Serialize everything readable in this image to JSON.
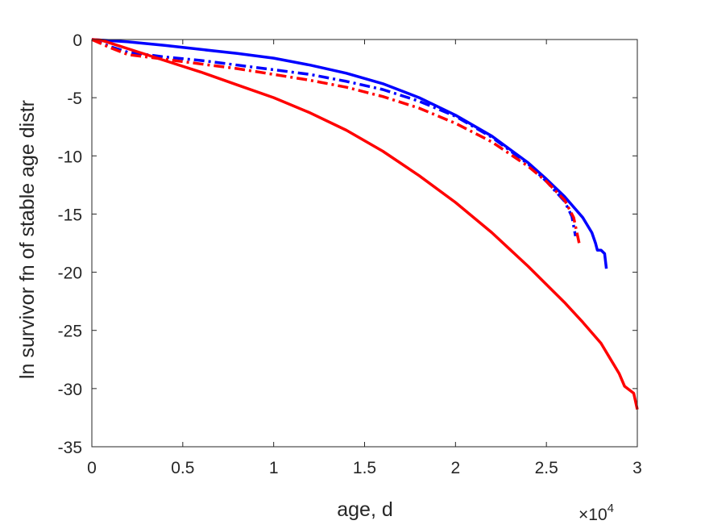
{
  "chart_data": {
    "type": "line",
    "title": "",
    "xlabel": "age, d",
    "ylabel": "ln survivor fn of stable age distr",
    "x_exponent_label": "×10",
    "x_exponent_power": "4",
    "xlim": [
      0,
      30000
    ],
    "ylim": [
      -35,
      0
    ],
    "grid": false,
    "legend": "none",
    "x_ticks": [
      0,
      5000,
      10000,
      15000,
      20000,
      25000,
      30000
    ],
    "x_tick_labels": [
      "0",
      "0.5",
      "1",
      "1.5",
      "2",
      "2.5",
      "3"
    ],
    "y_ticks": [
      0,
      -5,
      -10,
      -15,
      -20,
      -25,
      -30,
      -35
    ],
    "y_tick_labels": [
      "0",
      "-5",
      "-10",
      "-15",
      "-20",
      "-25",
      "-30",
      "-35"
    ],
    "series": [
      {
        "color": "#0000ff",
        "style": "solid",
        "x": [
          0,
          1000,
          2000,
          4000,
          6000,
          8000,
          10000,
          12000,
          14000,
          16000,
          18000,
          20000,
          22000,
          24000,
          25000,
          26000,
          27000,
          27500,
          27700,
          27800,
          28000,
          28200,
          28300
        ],
        "y": [
          0,
          -0.1,
          -0.2,
          -0.5,
          -0.85,
          -1.2,
          -1.6,
          -2.2,
          -2.9,
          -3.8,
          -5.0,
          -6.5,
          -8.3,
          -10.6,
          -12.0,
          -13.5,
          -15.3,
          -16.6,
          -17.5,
          -18.1,
          -18.1,
          -18.4,
          -19.7
        ]
      },
      {
        "color": "#0000ff",
        "style": "dashdot",
        "x": [
          0,
          1000,
          2000,
          4000,
          6000,
          8000,
          10000,
          12000,
          14000,
          16000,
          18000,
          20000,
          22000,
          24000,
          25000,
          26000,
          26400,
          26600
        ],
        "y": [
          0,
          -0.6,
          -1.1,
          -1.5,
          -1.8,
          -2.2,
          -2.6,
          -3.0,
          -3.6,
          -4.3,
          -5.3,
          -6.6,
          -8.4,
          -10.7,
          -12.2,
          -13.9,
          -15.2,
          -16.9
        ]
      },
      {
        "color": "#ff0000",
        "style": "solid",
        "x": [
          0,
          500,
          1000,
          2000,
          4000,
          6000,
          8000,
          10000,
          12000,
          14000,
          16000,
          18000,
          20000,
          22000,
          24000,
          26000,
          27000,
          28000,
          28500,
          29000,
          29300,
          29800,
          30000
        ],
        "y": [
          0,
          -0.05,
          -0.3,
          -0.8,
          -1.8,
          -2.8,
          -3.9,
          -5.0,
          -6.3,
          -7.8,
          -9.6,
          -11.7,
          -14.0,
          -16.6,
          -19.5,
          -22.6,
          -24.3,
          -26.1,
          -27.4,
          -28.7,
          -29.8,
          -30.4,
          -31.8
        ]
      },
      {
        "color": "#ff0000",
        "style": "dashdot",
        "x": [
          0,
          1000,
          2000,
          4000,
          6000,
          8000,
          10000,
          12000,
          14000,
          16000,
          18000,
          20000,
          22000,
          24000,
          25000,
          26000,
          26500,
          26800
        ],
        "y": [
          0,
          -0.7,
          -1.3,
          -1.7,
          -2.1,
          -2.5,
          -3.0,
          -3.5,
          -4.1,
          -4.9,
          -5.9,
          -7.2,
          -8.8,
          -10.9,
          -12.2,
          -13.8,
          -15.3,
          -17.5
        ]
      }
    ]
  }
}
